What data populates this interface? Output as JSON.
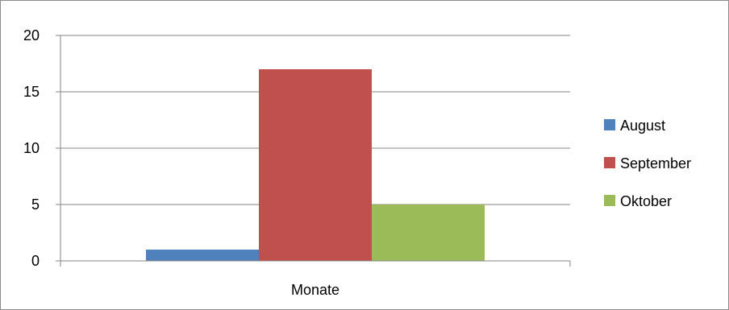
{
  "chart_data": {
    "type": "bar",
    "categories": [
      "Monate"
    ],
    "series": [
      {
        "name": "August",
        "values": [
          1
        ],
        "color": "#4F81BD"
      },
      {
        "name": "September",
        "values": [
          17
        ],
        "color": "#C0504D"
      },
      {
        "name": "Oktober",
        "values": [
          5
        ],
        "color": "#9BBB59"
      }
    ],
    "ylim": [
      0,
      20
    ],
    "yticks": [
      0,
      5,
      10,
      15,
      20
    ],
    "grid": true,
    "legend_position": "right"
  }
}
